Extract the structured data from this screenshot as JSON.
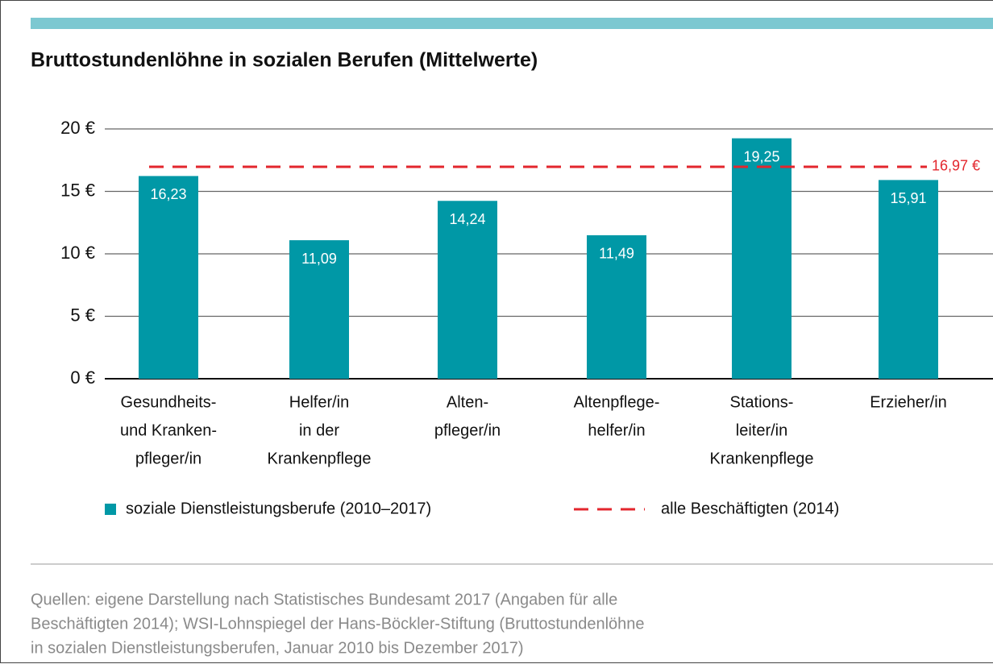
{
  "chart_data": {
    "type": "bar",
    "title": "Bruttostundenlöhne in sozialen Berufen (Mittelwerte)",
    "categories": [
      [
        "Gesundheits-",
        "und Kranken-",
        "pfleger/in"
      ],
      [
        "Helfer/in",
        "in der",
        "Krankenpflege"
      ],
      [
        "Alten-",
        "pfleger/in"
      ],
      [
        "Altenpflege-",
        "helfer/in"
      ],
      [
        "Stations-",
        "leiter/in",
        "Krankenpflege"
      ],
      [
        "Erzieher/in"
      ]
    ],
    "series": [
      {
        "name": "soziale Dienstleistungsberufe (2010–2017)",
        "color": "#0098a6",
        "values": [
          16.23,
          11.09,
          14.24,
          11.49,
          19.25,
          15.91
        ],
        "value_labels": [
          "16,23",
          "11,09",
          "14,24",
          "11,49",
          "19,25",
          "15,91"
        ]
      }
    ],
    "reference": {
      "name": "alle Beschäftigten (2014)",
      "value": 16.97,
      "label": "16,97 €",
      "color": "#e3262d"
    },
    "ylim": [
      0,
      20
    ],
    "yticks": [
      {
        "value": 0,
        "label": "0 €"
      },
      {
        "value": 5,
        "label": "5 €"
      },
      {
        "value": 10,
        "label": "10 €"
      },
      {
        "value": 15,
        "label": "15 €"
      },
      {
        "value": 20,
        "label": "20 €"
      }
    ],
    "grid": true,
    "legend": "bottom",
    "source": [
      "Quellen: eigene Darstellung nach Statistisches Bundesamt 2017 (Angaben für alle",
      "Beschäftigten 2014); WSI-Lohnspiegel der Hans-Böckler-Stiftung (Bruttostundenlöhne",
      "in sozialen Dienstleistungsberufen, Januar 2010 bis Dezember 2017)"
    ]
  }
}
